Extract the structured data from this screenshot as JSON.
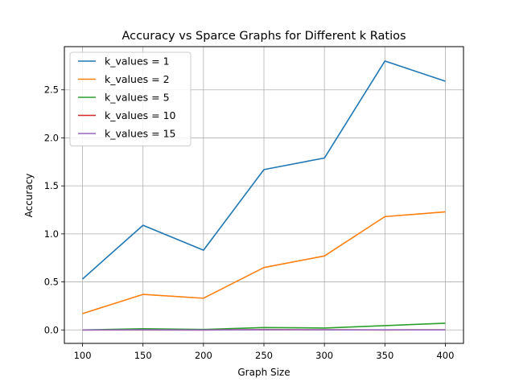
{
  "chart_data": {
    "type": "line",
    "title": "Accuracy vs Sparce Graphs for Different k Ratios",
    "xlabel": "Graph Size",
    "ylabel": "Accuracy",
    "x": [
      100,
      150,
      200,
      250,
      300,
      350,
      400
    ],
    "xticks": [
      "100",
      "150",
      "200",
      "250",
      "300",
      "350",
      "400"
    ],
    "yticks": [
      "0.0",
      "0.5",
      "1.0",
      "1.5",
      "2.0",
      "2.5"
    ],
    "xlim": [
      85,
      415
    ],
    "ylim": [
      -0.14,
      2.95
    ],
    "grid": true,
    "legend_position": "top-left",
    "series": [
      {
        "name": "k_values = 1",
        "color": "#1f77b4",
        "values": [
          0.53,
          1.09,
          0.83,
          1.67,
          1.79,
          2.8,
          2.59
        ]
      },
      {
        "name": "k_values = 2",
        "color": "#ff7f0e",
        "values": [
          0.17,
          0.37,
          0.33,
          0.65,
          0.77,
          1.18,
          1.23
        ]
      },
      {
        "name": "k_values = 5",
        "color": "#2ca02c",
        "values": [
          0.0,
          0.012,
          0.005,
          0.025,
          0.02,
          0.045,
          0.07
        ]
      },
      {
        "name": "k_values = 10",
        "color": "#d62728",
        "values": [
          0.0,
          0.0,
          0.0,
          0.003,
          0.002,
          0.0,
          0.001
        ]
      },
      {
        "name": "k_values = 15",
        "color": "#9467bd",
        "values": [
          0.0,
          0.001,
          0.0,
          0.002,
          0.001,
          0.001,
          0.001
        ]
      }
    ]
  }
}
